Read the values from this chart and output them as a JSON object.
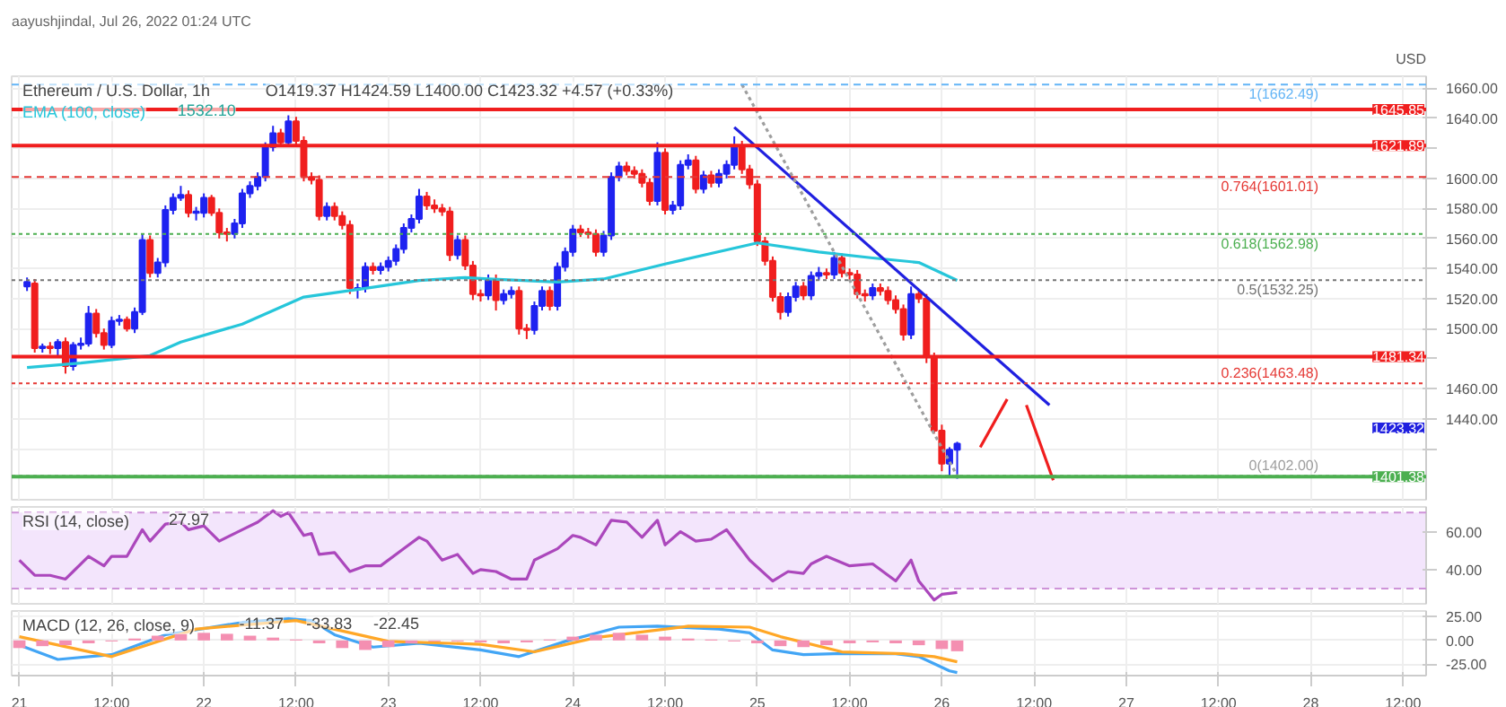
{
  "chart_data": [
    {
      "type": "candlestick",
      "title": "aayushjindal, Jul 26, 2022 01:24 UTC",
      "subtitle": "Ethereum / U.S. Dollar, 1h",
      "ylabel": "USD",
      "annotations": [
        "O1419.37 H1424.59 L1400.00 C1423.32 +4.57 (+0.33%)",
        "1532.10",
        "1423.32"
      ],
      "x": [
        "2022-07-21T01:00",
        "2022-07-21T02:00",
        "2022-07-21T03:00",
        "2022-07-21T04:00",
        "2022-07-21T05:00",
        "2022-07-21T06:00",
        "2022-07-21T07:00",
        "2022-07-21T08:00",
        "2022-07-21T09:00",
        "2022-07-21T10:00",
        "2022-07-21T11:00",
        "2022-07-21T12:00",
        "2022-07-21T13:00",
        "2022-07-21T14:00",
        "2022-07-21T15:00",
        "2022-07-21T16:00",
        "2022-07-21T17:00",
        "2022-07-21T18:00",
        "2022-07-21T19:00",
        "2022-07-21T20:00",
        "2022-07-21T21:00",
        "2022-07-21T22:00",
        "2022-07-21T23:00",
        "2022-07-22T00:00",
        "2022-07-22T01:00",
        "2022-07-22T02:00",
        "2022-07-22T03:00",
        "2022-07-22T04:00",
        "2022-07-22T05:00",
        "2022-07-22T06:00",
        "2022-07-22T07:00",
        "2022-07-22T08:00",
        "2022-07-22T09:00",
        "2022-07-22T10:00",
        "2022-07-22T11:00",
        "2022-07-22T12:00",
        "2022-07-22T13:00",
        "2022-07-22T14:00",
        "2022-07-22T15:00",
        "2022-07-22T16:00",
        "2022-07-22T17:00",
        "2022-07-22T18:00",
        "2022-07-22T19:00",
        "2022-07-22T20:00",
        "2022-07-22T21:00",
        "2022-07-22T22:00",
        "2022-07-22T23:00",
        "2022-07-23T00:00",
        "2022-07-23T01:00",
        "2022-07-23T02:00",
        "2022-07-23T03:00",
        "2022-07-23T04:00",
        "2022-07-23T05:00",
        "2022-07-23T06:00",
        "2022-07-23T07:00",
        "2022-07-23T08:00",
        "2022-07-23T09:00",
        "2022-07-23T10:00",
        "2022-07-23T11:00",
        "2022-07-23T12:00",
        "2022-07-23T13:00",
        "2022-07-23T14:00",
        "2022-07-23T15:00",
        "2022-07-23T16:00",
        "2022-07-23T17:00",
        "2022-07-23T18:00",
        "2022-07-23T19:00",
        "2022-07-23T20:00",
        "2022-07-23T21:00",
        "2022-07-23T22:00",
        "2022-07-23T23:00",
        "2022-07-24T00:00",
        "2022-07-24T01:00",
        "2022-07-24T02:00",
        "2022-07-24T03:00",
        "2022-07-24T04:00",
        "2022-07-24T05:00",
        "2022-07-24T06:00",
        "2022-07-24T07:00",
        "2022-07-24T08:00",
        "2022-07-24T09:00",
        "2022-07-24T10:00",
        "2022-07-24T11:00",
        "2022-07-24T12:00",
        "2022-07-24T13:00",
        "2022-07-24T14:00",
        "2022-07-24T15:00",
        "2022-07-24T16:00",
        "2022-07-24T17:00",
        "2022-07-24T18:00",
        "2022-07-24T19:00",
        "2022-07-24T20:00",
        "2022-07-24T21:00",
        "2022-07-24T22:00",
        "2022-07-24T23:00",
        "2022-07-25T00:00",
        "2022-07-25T01:00",
        "2022-07-25T02:00",
        "2022-07-25T03:00",
        "2022-07-25T04:00",
        "2022-07-25T05:00",
        "2022-07-25T06:00",
        "2022-07-25T07:00",
        "2022-07-25T08:00",
        "2022-07-25T09:00",
        "2022-07-25T10:00",
        "2022-07-25T11:00",
        "2022-07-25T12:00",
        "2022-07-25T13:00",
        "2022-07-25T14:00",
        "2022-07-25T15:00",
        "2022-07-25T16:00",
        "2022-07-25T17:00",
        "2022-07-25T18:00",
        "2022-07-25T19:00",
        "2022-07-25T20:00",
        "2022-07-25T21:00",
        "2022-07-25T22:00",
        "2022-07-25T23:00",
        "2022-07-26T00:00",
        "2022-07-26T01:00",
        "2022-07-26T02:00"
      ],
      "ohlc": [
        [
          1528,
          1534,
          1525,
          1531
        ],
        [
          1530,
          1533,
          1484,
          1487
        ],
        [
          1487,
          1490,
          1484,
          1488
        ],
        [
          1488,
          1491,
          1483,
          1487
        ],
        [
          1487,
          1493,
          1482,
          1491
        ],
        [
          1491,
          1494,
          1470,
          1475
        ],
        [
          1475,
          1491,
          1472,
          1489
        ],
        [
          1489,
          1494,
          1486,
          1490
        ],
        [
          1490,
          1515,
          1488,
          1510
        ],
        [
          1510,
          1513,
          1494,
          1497
        ],
        [
          1497,
          1500,
          1486,
          1489
        ],
        [
          1489,
          1508,
          1487,
          1505
        ],
        [
          1505,
          1509,
          1502,
          1506
        ],
        [
          1506,
          1508,
          1498,
          1500
        ],
        [
          1500,
          1514,
          1497,
          1511
        ],
        [
          1511,
          1563,
          1509,
          1559
        ],
        [
          1559,
          1562,
          1534,
          1537
        ],
        [
          1537,
          1547,
          1534,
          1544
        ],
        [
          1544,
          1582,
          1541,
          1579
        ],
        [
          1579,
          1590,
          1576,
          1587
        ],
        [
          1587,
          1595,
          1585,
          1589
        ],
        [
          1589,
          1592,
          1574,
          1577
        ],
        [
          1577,
          1581,
          1572,
          1578
        ],
        [
          1577,
          1590,
          1574,
          1587
        ],
        [
          1587,
          1589,
          1575,
          1577
        ],
        [
          1577,
          1580,
          1560,
          1564
        ],
        [
          1564,
          1567,
          1558,
          1563
        ],
        [
          1563,
          1573,
          1560,
          1570
        ],
        [
          1570,
          1593,
          1567,
          1590
        ],
        [
          1590,
          1598,
          1587,
          1595
        ],
        [
          1595,
          1604,
          1592,
          1601
        ],
        [
          1601,
          1624,
          1598,
          1621
        ],
        [
          1621,
          1635,
          1618,
          1630
        ],
        [
          1630,
          1633,
          1621,
          1624
        ],
        [
          1624,
          1642,
          1621,
          1638
        ],
        [
          1638,
          1641,
          1622,
          1625
        ],
        [
          1625,
          1628,
          1598,
          1601
        ],
        [
          1601,
          1604,
          1596,
          1599
        ],
        [
          1599,
          1602,
          1572,
          1575
        ],
        [
          1575,
          1584,
          1572,
          1581
        ],
        [
          1581,
          1584,
          1572,
          1575
        ],
        [
          1575,
          1578,
          1566,
          1569
        ],
        [
          1569,
          1572,
          1523,
          1527
        ],
        [
          1526,
          1530,
          1520,
          1527
        ],
        [
          1527,
          1544,
          1524,
          1541
        ],
        [
          1541,
          1544,
          1536,
          1539
        ],
        [
          1539,
          1544,
          1536,
          1541
        ],
        [
          1541,
          1548,
          1538,
          1545
        ],
        [
          1545,
          1556,
          1542,
          1553
        ],
        [
          1553,
          1570,
          1550,
          1567
        ],
        [
          1567,
          1576,
          1564,
          1573
        ],
        [
          1573,
          1593,
          1570,
          1588
        ],
        [
          1588,
          1591,
          1579,
          1582
        ],
        [
          1582,
          1586,
          1577,
          1580
        ],
        [
          1580,
          1583,
          1575,
          1578
        ],
        [
          1578,
          1581,
          1545,
          1549
        ],
        [
          1549,
          1562,
          1546,
          1559
        ],
        [
          1559,
          1562,
          1539,
          1542
        ],
        [
          1542,
          1545,
          1519,
          1523
        ],
        [
          1523,
          1526,
          1518,
          1522
        ],
        [
          1522,
          1536,
          1519,
          1533
        ],
        [
          1533,
          1536,
          1512,
          1519
        ],
        [
          1519,
          1526,
          1516,
          1523
        ],
        [
          1523,
          1528,
          1520,
          1525
        ],
        [
          1525,
          1528,
          1496,
          1500
        ],
        [
          1500,
          1503,
          1493,
          1499
        ],
        [
          1499,
          1518,
          1496,
          1515
        ],
        [
          1515,
          1528,
          1512,
          1525
        ],
        [
          1525,
          1528,
          1512,
          1515
        ],
        [
          1515,
          1544,
          1512,
          1541
        ],
        [
          1541,
          1554,
          1538,
          1551
        ],
        [
          1551,
          1569,
          1548,
          1566
        ],
        [
          1566,
          1569,
          1561,
          1564
        ],
        [
          1564,
          1567,
          1560,
          1563
        ],
        [
          1563,
          1566,
          1548,
          1551
        ],
        [
          1551,
          1565,
          1548,
          1562
        ],
        [
          1562,
          1604,
          1559,
          1601
        ],
        [
          1601,
          1611,
          1598,
          1608
        ],
        [
          1608,
          1611,
          1602,
          1605
        ],
        [
          1605,
          1608,
          1600,
          1603
        ],
        [
          1603,
          1606,
          1594,
          1597
        ],
        [
          1597,
          1600,
          1582,
          1585
        ],
        [
          1585,
          1624,
          1582,
          1617
        ],
        [
          1617,
          1620,
          1576,
          1579
        ],
        [
          1579,
          1585,
          1576,
          1582
        ],
        [
          1582,
          1612,
          1579,
          1609
        ],
        [
          1609,
          1616,
          1606,
          1612
        ],
        [
          1612,
          1615,
          1590,
          1593
        ],
        [
          1593,
          1605,
          1590,
          1602
        ],
        [
          1602,
          1605,
          1594,
          1597
        ],
        [
          1597,
          1606,
          1594,
          1603
        ],
        [
          1603,
          1612,
          1600,
          1609
        ],
        [
          1609,
          1628,
          1606,
          1621
        ],
        [
          1621,
          1625,
          1603,
          1606
        ],
        [
          1606,
          1609,
          1593,
          1596
        ],
        [
          1596,
          1599,
          1555,
          1558
        ],
        [
          1558,
          1561,
          1542,
          1545
        ],
        [
          1545,
          1548,
          1518,
          1521
        ],
        [
          1521,
          1524,
          1506,
          1511
        ],
        [
          1511,
          1524,
          1508,
          1521
        ],
        [
          1521,
          1531,
          1518,
          1528
        ],
        [
          1528,
          1531,
          1519,
          1522
        ],
        [
          1522,
          1538,
          1519,
          1535
        ],
        [
          1535,
          1541,
          1532,
          1537
        ],
        [
          1537,
          1540,
          1533,
          1536
        ],
        [
          1536,
          1551,
          1533,
          1547
        ],
        [
          1547,
          1550,
          1534,
          1537
        ],
        [
          1537,
          1540,
          1532,
          1536
        ],
        [
          1536,
          1539,
          1520,
          1523
        ],
        [
          1523,
          1526,
          1518,
          1522
        ],
        [
          1522,
          1530,
          1519,
          1527
        ],
        [
          1527,
          1530,
          1522,
          1525
        ],
        [
          1525,
          1528,
          1516,
          1519
        ],
        [
          1519,
          1522,
          1510,
          1513
        ],
        [
          1513,
          1516,
          1492,
          1496
        ],
        [
          1496,
          1528,
          1493,
          1523
        ],
        [
          1523,
          1526,
          1517,
          1520
        ],
        [
          1520,
          1523,
          1477,
          1481
        ],
        [
          1481,
          1484,
          1430,
          1432
        ],
        [
          1432,
          1436,
          1405,
          1410
        ],
        [
          1410,
          1421,
          1402,
          1419.37
        ],
        [
          1419.37,
          1424.59,
          1400,
          1423.32
        ]
      ],
      "colors": [
        "#1e22f0",
        "#f01e1e",
        "#1e22f0",
        "#f01e1e",
        "#1e22f0",
        "#f01e1e",
        "#1e22f0",
        "#1e22f0",
        "#1e22f0",
        "#f01e1e",
        "#f01e1e",
        "#1e22f0",
        "#1e22f0",
        "#f01e1e",
        "#1e22f0",
        "#1e22f0",
        "#f01e1e",
        "#1e22f0",
        "#1e22f0",
        "#1e22f0",
        "#1e22f0",
        "#f01e1e",
        "#1e22f0",
        "#1e22f0",
        "#f01e1e",
        "#f01e1e",
        "#f01e1e",
        "#1e22f0",
        "#1e22f0",
        "#1e22f0",
        "#1e22f0",
        "#1e22f0",
        "#1e22f0",
        "#f01e1e",
        "#1e22f0",
        "#f01e1e",
        "#f01e1e",
        "#f01e1e",
        "#f01e1e",
        "#1e22f0",
        "#f01e1e",
        "#f01e1e",
        "#f01e1e",
        "#1e22f0",
        "#1e22f0",
        "#f01e1e",
        "#1e22f0",
        "#1e22f0",
        "#1e22f0",
        "#1e22f0",
        "#1e22f0",
        "#1e22f0",
        "#f01e1e",
        "#f01e1e",
        "#f01e1e",
        "#f01e1e",
        "#1e22f0",
        "#f01e1e",
        "#f01e1e",
        "#f01e1e",
        "#1e22f0",
        "#f01e1e",
        "#1e22f0",
        "#1e22f0",
        "#f01e1e",
        "#f01e1e",
        "#1e22f0",
        "#1e22f0",
        "#f01e1e",
        "#1e22f0",
        "#1e22f0",
        "#1e22f0",
        "#f01e1e",
        "#f01e1e",
        "#f01e1e",
        "#1e22f0",
        "#1e22f0",
        "#1e22f0",
        "#f01e1e",
        "#f01e1e",
        "#f01e1e",
        "#f01e1e",
        "#1e22f0",
        "#f01e1e",
        "#1e22f0",
        "#1e22f0",
        "#1e22f0",
        "#f01e1e",
        "#1e22f0",
        "#f01e1e",
        "#1e22f0",
        "#1e22f0",
        "#1e22f0",
        "#f01e1e",
        "#f01e1e",
        "#f01e1e",
        "#f01e1e",
        "#f01e1e",
        "#f01e1e",
        "#1e22f0",
        "#1e22f0",
        "#f01e1e",
        "#1e22f0",
        "#1e22f0",
        "#f01e1e",
        "#1e22f0",
        "#f01e1e",
        "#f01e1e",
        "#f01e1e",
        "#f01e1e",
        "#1e22f0",
        "#f01e1e",
        "#f01e1e",
        "#f01e1e",
        "#f01e1e",
        "#1e22f0",
        "#f01e1e",
        "#f01e1e",
        "#f01e1e",
        "#f01e1e",
        "#1e22f0",
        "#1e22f0"
      ],
      "series": [
        {
          "name": "EMA (100, close)",
          "type": "line",
          "color": "#26c6da",
          "x": [
            "2022-07-21T01:00",
            "2022-07-21T08:00",
            "2022-07-21T17:00",
            "2022-07-21T21:00",
            "2022-07-22T05:00",
            "2022-07-22T13:00",
            "2022-07-22T20:00",
            "2022-07-23T04:00",
            "2022-07-23T10:00",
            "2022-07-23T13:00",
            "2022-07-23T22:00",
            "2022-07-24T04:00",
            "2022-07-24T12:00",
            "2022-07-25T00:00",
            "2022-07-25T08:00",
            "2022-07-25T15:00",
            "2022-07-25T21:00",
            "2022-07-26T02:00"
          ],
          "values": [
            1474,
            1477,
            1482,
            1491,
            1503,
            1521,
            1526,
            1532,
            1534,
            1533,
            1531,
            1533,
            1543,
            1557,
            1551,
            1547,
            1544,
            1532.1
          ]
        },
        {
          "type": "line",
          "color": "#2020e0",
          "x": [
            "2022-07-24T21:00",
            "2022-07-26T14:00"
          ],
          "values": [
            1634,
            1449
          ]
        },
        {
          "type": "line",
          "color": "#9e9e9e",
          "line_style": "dotted",
          "x": [
            "2022-07-24T22:00",
            "2022-07-26T02:00"
          ],
          "values": [
            1662.49,
            1402
          ]
        },
        {
          "type": "line",
          "color": "#f01e1e",
          "x": [
            "2022-07-26T05:00",
            "2022-07-26T08:30",
            "2022-07-26T09:30",
            "2022-07-26T11:00",
            "2022-07-26T14:30"
          ],
          "values": [
            1421,
            1453,
            null,
            1449,
            1399
          ]
        }
      ],
      "ref_lines": [
        {
          "axis": "y",
          "value": 1662.49,
          "label": "1(1662.49)",
          "color": "#64b5f6",
          "line_style": "dashed"
        },
        {
          "axis": "y",
          "value": 1645.85,
          "label": "1645.85",
          "color": "#f01e1e"
        },
        {
          "axis": "y",
          "value": 1621.89,
          "label": "1621.89",
          "color": "#f01e1e"
        },
        {
          "axis": "y",
          "value": 1601.01,
          "label": "0.764(1601.01)",
          "color": "#e53935",
          "line_style": "dashed"
        },
        {
          "axis": "y",
          "value": 1562.98,
          "label": "0.618(1562.98)",
          "color": "#4caf50",
          "line_style": "dotted"
        },
        {
          "axis": "y",
          "value": 1532.25,
          "label": "0.5(1532.25)",
          "color": "#757575",
          "line_style": "dotted"
        },
        {
          "axis": "y",
          "value": 1481.34,
          "label": "1481.34",
          "color": "#f01e1e"
        },
        {
          "axis": "y",
          "value": 1463.48,
          "label": "0.236(1463.48)",
          "color": "#e53935",
          "line_style": "dotted"
        },
        {
          "axis": "y",
          "value": 1402.0,
          "label": "0(1402.00)",
          "color": "#9e9e9e",
          "line_style": "dotted"
        },
        {
          "axis": "y",
          "value": 1401.38,
          "label": "1401.38",
          "color": "#4caf50"
        }
      ],
      "xlim": [
        "2022-07-20T23:00",
        "2022-07-28T15:00"
      ],
      "ylim": [
        1386,
        1668
      ],
      "yticks": [
        {
          "value": 1420,
          "label": null
        },
        {
          "value": 1440,
          "label": "1440.00"
        },
        {
          "value": 1460,
          "label": "1460.00"
        },
        {
          "value": 1480,
          "label": null
        },
        {
          "value": 1500,
          "label": "1500.00"
        },
        {
          "value": 1520,
          "label": "1520.00"
        },
        {
          "value": 1540,
          "label": "1540.00"
        },
        {
          "value": 1560,
          "label": "1560.00"
        },
        {
          "value": 1580,
          "label": "1580.00"
        },
        {
          "value": 1600,
          "label": "1600.00"
        },
        {
          "value": 1620,
          "label": null
        },
        {
          "value": 1640,
          "label": "1640.00"
        },
        {
          "value": 1660,
          "label": "1660.00"
        }
      ],
      "grid": true,
      "legend": "top left",
      "tick_labels": "y"
    },
    {
      "type": "line",
      "title": "RSI (14, close)",
      "annotations": [
        "27.97"
      ],
      "series": [
        {
          "color": "#ab47bc",
          "x": [
            "2022-07-21T00:00",
            "2022-07-21T02:00",
            "2022-07-21T04:00",
            "2022-07-21T06:00",
            "2022-07-21T07:00",
            "2022-07-21T09:00",
            "2022-07-21T11:00",
            "2022-07-21T12:00",
            "2022-07-21T14:00",
            "2022-07-21T16:00",
            "2022-07-21T17:00",
            "2022-07-21T19:00",
            "2022-07-21T21:00",
            "2022-07-21T22:00",
            "2022-07-22T00:00",
            "2022-07-22T02:00",
            "2022-07-22T05:00",
            "2022-07-22T07:00",
            "2022-07-22T09:00",
            "2022-07-22T10:00",
            "2022-07-22T11:00",
            "2022-07-22T13:00",
            "2022-07-22T14:00",
            "2022-07-22T15:00",
            "2022-07-22T17:00",
            "2022-07-22T19:00",
            "2022-07-22T21:00",
            "2022-07-22T23:00",
            "2022-07-23T02:00",
            "2022-07-23T04:00",
            "2022-07-23T05:00",
            "2022-07-23T07:00",
            "2022-07-23T09:00",
            "2022-07-23T11:00",
            "2022-07-23T12:00",
            "2022-07-23T14:00",
            "2022-07-23T16:00",
            "2022-07-23T18:00",
            "2022-07-23T19:00",
            "2022-07-23T22:00",
            "2022-07-24T00:00",
            "2022-07-24T01:00",
            "2022-07-24T03:00",
            "2022-07-24T05:00",
            "2022-07-24T07:00",
            "2022-07-24T09:00",
            "2022-07-24T11:00",
            "2022-07-24T12:00",
            "2022-07-24T14:00",
            "2022-07-24T16:00",
            "2022-07-24T18:00",
            "2022-07-24T20:00",
            "2022-07-24T23:00",
            "2022-07-25T02:00",
            "2022-07-25T04:00",
            "2022-07-25T06:00",
            "2022-07-25T07:00",
            "2022-07-25T09:00",
            "2022-07-25T12:00",
            "2022-07-25T15:00",
            "2022-07-25T18:00",
            "2022-07-25T20:00",
            "2022-07-25T21:00",
            "2022-07-25T23:00",
            "2022-07-26T00:00",
            "2022-07-26T02:00"
          ],
          "values": [
            45,
            37,
            37,
            35,
            39,
            47,
            42,
            47,
            47,
            61,
            55,
            64,
            65,
            61,
            63,
            55,
            61,
            65,
            71,
            68,
            70,
            58,
            59,
            48,
            49,
            39,
            42,
            42,
            51,
            57,
            55,
            45,
            48,
            38,
            40,
            39,
            35,
            35,
            45,
            51,
            58,
            57,
            53,
            66,
            65,
            57,
            66,
            53,
            60,
            55,
            56,
            61,
            45,
            34,
            39,
            38,
            43,
            47,
            42,
            43,
            34,
            45,
            34,
            24,
            27,
            27.97
          ]
        }
      ],
      "bands": [
        {
          "axis": "y",
          "from": 30,
          "to": 70,
          "color": "#f3e5fc"
        }
      ],
      "ref_lines": [
        {
          "axis": "y",
          "value": 70,
          "color": "#ce93d8",
          "line_style": "dashed"
        },
        {
          "axis": "y",
          "value": 30,
          "color": "#ce93d8",
          "line_style": "dashed"
        }
      ],
      "xlim": [
        "2022-07-20T23:00",
        "2022-07-28T15:00"
      ],
      "ylim": [
        22,
        73
      ],
      "yticks": [
        {
          "value": 40,
          "label": "40.00"
        },
        {
          "value": 60,
          "label": "60.00"
        }
      ],
      "grid": true,
      "tick_labels": "y"
    },
    {
      "type": "line",
      "title": "MACD (12, 26, close, 9)",
      "annotations": [
        "-11.37",
        "-33.83",
        "-22.45"
      ],
      "series": [
        {
          "type": "bar",
          "color": "#f48fb1",
          "x": [
            "2022-07-21T00:00",
            "2022-07-21T03:00",
            "2022-07-21T06:00",
            "2022-07-21T09:00",
            "2022-07-21T12:00",
            "2022-07-21T15:00",
            "2022-07-21T18:00",
            "2022-07-21T21:00",
            "2022-07-22T00:00",
            "2022-07-22T03:00",
            "2022-07-22T06:00",
            "2022-07-22T09:00",
            "2022-07-22T12:00",
            "2022-07-22T15:00",
            "2022-07-22T18:00",
            "2022-07-22T21:00",
            "2022-07-23T00:00",
            "2022-07-23T03:00",
            "2022-07-23T06:00",
            "2022-07-23T09:00",
            "2022-07-23T12:00",
            "2022-07-23T15:00",
            "2022-07-23T18:00",
            "2022-07-23T21:00",
            "2022-07-24T00:00",
            "2022-07-24T03:00",
            "2022-07-24T06:00",
            "2022-07-24T09:00",
            "2022-07-24T12:00",
            "2022-07-24T15:00",
            "2022-07-24T18:00",
            "2022-07-24T21:00",
            "2022-07-25T00:00",
            "2022-07-25T03:00",
            "2022-07-25T06:00",
            "2022-07-25T09:00",
            "2022-07-25T12:00",
            "2022-07-25T15:00",
            "2022-07-25T18:00",
            "2022-07-25T21:00",
            "2022-07-26T00:00",
            "2022-07-26T02:00"
          ],
          "values": [
            -8,
            -6,
            -5,
            -3,
            -1,
            2,
            5,
            7,
            8,
            7,
            5,
            3,
            1,
            -3,
            -8,
            -10,
            -7,
            -3,
            -1,
            -1,
            -2,
            -3,
            -2,
            1,
            4,
            6,
            8,
            6,
            4,
            2,
            1,
            -1,
            -3,
            -6,
            -7,
            -5,
            -3,
            -2,
            -3,
            -5,
            -9,
            -11.37
          ]
        },
        {
          "type": "line",
          "color": "#42a5f5",
          "x": [
            "2022-07-21T00:00",
            "2022-07-21T05:00",
            "2022-07-21T12:00",
            "2022-07-21T19:00",
            "2022-07-22T05:00",
            "2022-07-22T11:00",
            "2022-07-22T14:00",
            "2022-07-22T17:00",
            "2022-07-22T22:00",
            "2022-07-23T04:00",
            "2022-07-23T12:00",
            "2022-07-23T17:00",
            "2022-07-23T23:00",
            "2022-07-24T06:00",
            "2022-07-24T11:00",
            "2022-07-24T19:00",
            "2022-07-24T23:00",
            "2022-07-25T02:00",
            "2022-07-25T06:00",
            "2022-07-25T10:00",
            "2022-07-25T18:00",
            "2022-07-25T21:00",
            "2022-07-26T01:00",
            "2022-07-26T02:00"
          ],
          "values": [
            -5,
            -20,
            -15,
            6,
            19,
            23,
            21,
            6,
            -7,
            -3,
            -10,
            -17,
            -1,
            14,
            15,
            12,
            8,
            -10,
            -15,
            -14,
            -14,
            -17,
            -32,
            -33.83
          ]
        },
        {
          "type": "line",
          "color": "#ffa726",
          "x": [
            "2022-07-21T00:00",
            "2022-07-21T12:00",
            "2022-07-21T23:00",
            "2022-07-22T12:00",
            "2022-07-23T00:00",
            "2022-07-23T12:00",
            "2022-07-23T19:00",
            "2022-07-24T03:00",
            "2022-07-24T15:00",
            "2022-07-24T23:00",
            "2022-07-25T03:00",
            "2022-07-25T11:00",
            "2022-07-25T19:00",
            "2022-07-25T23:00",
            "2022-07-26T02:00"
          ],
          "values": [
            4,
            -17,
            12,
            21,
            -1,
            -4,
            -12,
            3,
            15,
            14,
            4,
            -12,
            -14,
            -17,
            -22.45
          ]
        }
      ],
      "xlim": [
        "2022-07-20T23:00",
        "2022-07-28T15:00"
      ],
      "xticks": [
        {
          "value": "2022-07-21",
          "label": "21"
        },
        {
          "value": "2022-07-21T12:00",
          "label": "12:00"
        },
        {
          "value": "2022-07-22",
          "label": "22"
        },
        {
          "value": "2022-07-22T12:00",
          "label": "12:00"
        },
        {
          "value": "2022-07-23",
          "label": "23"
        },
        {
          "value": "2022-07-23T12:00",
          "label": "12:00"
        },
        {
          "value": "2022-07-24",
          "label": "24"
        },
        {
          "value": "2022-07-24T12:00",
          "label": "12:00"
        },
        {
          "value": "2022-07-25",
          "label": "25"
        },
        {
          "value": "2022-07-25T12:00",
          "label": "12:00"
        },
        {
          "value": "2022-07-26",
          "label": "26"
        },
        {
          "value": "2022-07-26T12:00",
          "label": "12:00"
        },
        {
          "value": "2022-07-27",
          "label": "27"
        },
        {
          "value": "2022-07-27T12:00",
          "label": "12:00"
        },
        {
          "value": "2022-07-28",
          "label": "28"
        },
        {
          "value": "2022-07-28T12:00",
          "label": "12:00"
        }
      ],
      "ylim": [
        -37,
        31
      ],
      "yticks": [
        {
          "value": -25,
          "label": "-25.00"
        },
        {
          "value": 0,
          "label": "0.00"
        },
        {
          "value": 25,
          "label": "25.00"
        }
      ],
      "grid": true
    }
  ]
}
